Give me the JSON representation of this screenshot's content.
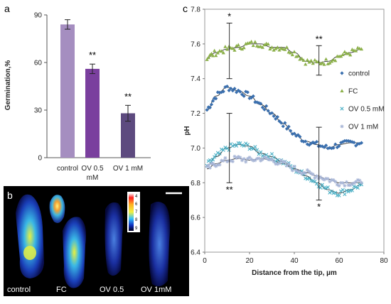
{
  "panel_labels": {
    "a": "a",
    "b": "b",
    "c": "c"
  },
  "chart_data": [
    {
      "type": "bar",
      "ylabel": "Germination,%",
      "ylim": [
        0,
        90
      ],
      "yticks": [
        "0",
        "30",
        "60",
        "90"
      ],
      "categories": [
        "control",
        "OV 0.5 mM",
        "OV 1 mM"
      ],
      "values": [
        84,
        56,
        28
      ],
      "errors": [
        3,
        3,
        5
      ],
      "significance": [
        "",
        "**",
        "**"
      ],
      "colors": [
        "#a58ec0",
        "#7a3f9e",
        "#5d4a7f"
      ]
    },
    {
      "type": "scatter",
      "xlabel": "Distance from the tip, µm",
      "ylabel": "pH",
      "xlim": [
        0,
        80
      ],
      "ylim": [
        6.4,
        7.8
      ],
      "xticks": [
        "0",
        "20",
        "40",
        "60",
        "80"
      ],
      "yticks": [
        "6.4",
        "6.6",
        "6.8",
        "7.0",
        "7.2",
        "7.4",
        "7.6",
        "7.8"
      ],
      "legend_position": "right",
      "series": [
        {
          "name": "control",
          "color": "#3a6fae",
          "marker": "diamond",
          "x": [
            1,
            5,
            10,
            15,
            20,
            25,
            30,
            35,
            40,
            45,
            50,
            55,
            60,
            65,
            70
          ],
          "y": [
            7.22,
            7.3,
            7.35,
            7.33,
            7.3,
            7.25,
            7.2,
            7.14,
            7.08,
            7.04,
            7.02,
            7.0,
            7.02,
            7.03,
            7.03
          ]
        },
        {
          "name": "FC",
          "color": "#8cb04a",
          "marker": "triangle",
          "x": [
            1,
            5,
            10,
            15,
            20,
            25,
            30,
            35,
            40,
            45,
            50,
            55,
            60,
            65,
            70
          ],
          "y": [
            7.52,
            7.55,
            7.57,
            7.58,
            7.6,
            7.6,
            7.58,
            7.58,
            7.55,
            7.5,
            7.49,
            7.5,
            7.53,
            7.55,
            7.57
          ]
        },
        {
          "name": "OV 0.5 mM",
          "color": "#4bb0c6",
          "marker": "x",
          "x": [
            1,
            5,
            10,
            15,
            20,
            25,
            30,
            35,
            40,
            45,
            50,
            55,
            60,
            65,
            70
          ],
          "y": [
            6.9,
            6.95,
            7.0,
            7.02,
            7.01,
            6.97,
            6.95,
            6.92,
            6.88,
            6.84,
            6.8,
            6.76,
            6.74,
            6.76,
            6.79
          ]
        },
        {
          "name": "OV 1 mM",
          "color": "#a7b5d6",
          "marker": "star",
          "x": [
            1,
            5,
            10,
            15,
            20,
            25,
            30,
            35,
            40,
            45,
            50,
            55,
            60,
            65,
            70
          ],
          "y": [
            6.88,
            6.91,
            6.93,
            6.94,
            6.93,
            6.94,
            6.93,
            6.91,
            6.88,
            6.86,
            6.84,
            6.82,
            6.8,
            6.8,
            6.8
          ]
        }
      ],
      "errorbars": [
        {
          "x": 11,
          "low": 7.4,
          "high": 7.72,
          "label": "*"
        },
        {
          "x": 11,
          "low": 6.8,
          "high": 7.2,
          "label": "**"
        },
        {
          "x": 51,
          "low": 7.42,
          "high": 7.59,
          "label": "**"
        },
        {
          "x": 51,
          "low": 6.7,
          "high": 7.12,
          "label": "*"
        }
      ]
    }
  ],
  "image_panel": {
    "labels": [
      "control",
      "FC",
      "OV 0.5",
      "OV 1mM"
    ],
    "colorbar_ticks": [
      "4",
      "6",
      "7",
      "8",
      "9"
    ]
  }
}
